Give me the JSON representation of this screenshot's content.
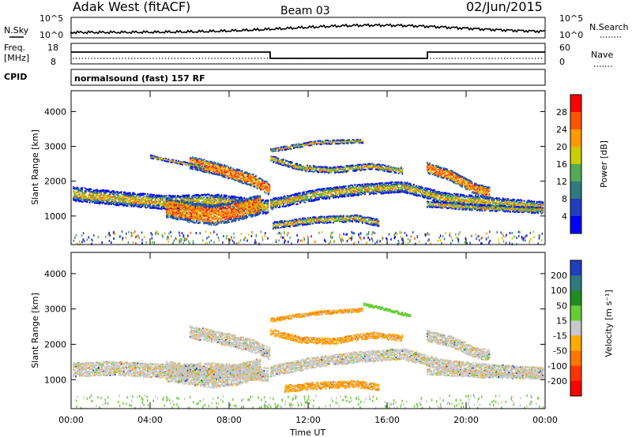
{
  "header": {
    "station": "Adak West (fitACF)",
    "beam": "Beam 03",
    "date": "02/Jun/2015"
  },
  "nsky_panel": {
    "left_label": "N.Sky",
    "right_label": "N.Search",
    "left_ticks": [
      "10^5",
      "10^0"
    ],
    "right_ticks": [
      "10^5",
      "10^0"
    ]
  },
  "freq_panel": {
    "left_label_1": "Freq.",
    "left_label_2": "[MHz]",
    "right_label": "Nave",
    "left_ticks": [
      "18",
      "8"
    ],
    "right_ticks": [
      "60",
      "0"
    ]
  },
  "cpid_panel": {
    "label": "CPID",
    "text": "normalsound (fast) 157 RF"
  },
  "chart_data": [
    {
      "type": "heatmap",
      "name": "power",
      "ylabel": "Slant Range [km]",
      "y_ticks": [
        "1000",
        "2000",
        "3000",
        "4000"
      ],
      "ylim": [
        180,
        4600
      ],
      "colorbar_label": "Power [dB]",
      "colorbar_ticks": [
        "4",
        "8",
        "12",
        "16",
        "20",
        "24",
        "28"
      ],
      "colors": [
        "#0000ff",
        "#1f3fbf",
        "#2e7a80",
        "#55aa55",
        "#cccc00",
        "#ff9900",
        "#ff5500",
        "#ff0000"
      ]
    },
    {
      "type": "heatmap",
      "name": "velocity",
      "ylabel": "Slant Range [km]",
      "y_ticks": [
        "1000",
        "2000",
        "3000",
        "4000"
      ],
      "ylim": [
        180,
        4600
      ],
      "colorbar_label": "Velocity [m s⁻¹]",
      "colorbar_ticks": [
        "200",
        "100",
        "50",
        "15",
        "-15",
        "-50",
        "-100",
        "-200"
      ],
      "colors": [
        "#1f3fbf",
        "#2e7a80",
        "#228b22",
        "#66cc33",
        "#c8c8c8",
        "#ffaa00",
        "#ff7700",
        "#ff3300",
        "#ff0000"
      ]
    }
  ],
  "x_axis": {
    "label": "Time UT",
    "ticks": [
      "00:00",
      "04:00",
      "08:00",
      "12:00",
      "16:00",
      "20:00",
      "00:00"
    ]
  }
}
